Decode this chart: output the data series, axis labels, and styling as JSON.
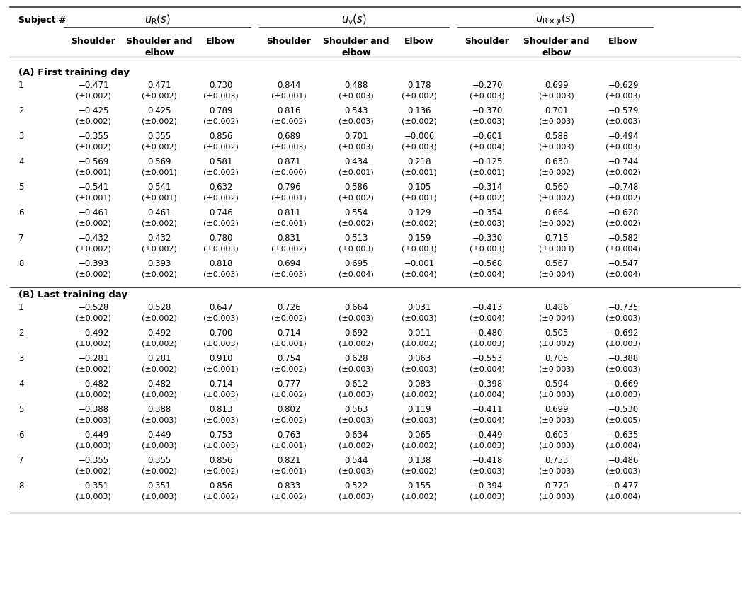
{
  "section_A_label": "(A) First training day",
  "section_B_label": "(B) Last training day",
  "section_A": [
    {
      "subject": "1",
      "vals": [
        "−0.471",
        "0.471",
        "0.730",
        "0.844",
        "0.488",
        "0.178",
        "−0.270",
        "0.699",
        "−0.629"
      ],
      "errs": [
        "(±0.002)",
        "(±0.002)",
        "(±0.003)",
        "(±0.001)",
        "(±0.003)",
        "(±0.002)",
        "(±0.003)",
        "(±0.003)",
        "(±0.003)"
      ]
    },
    {
      "subject": "2",
      "vals": [
        "−0.425",
        "0.425",
        "0.789",
        "0.816",
        "0.543",
        "0.136",
        "−0.370",
        "0.701",
        "−0.579"
      ],
      "errs": [
        "(±0.002)",
        "(±0.002)",
        "(±0.002)",
        "(±0.002)",
        "(±0.003)",
        "(±0.002)",
        "(±0.003)",
        "(±0.003)",
        "(±0.003)"
      ]
    },
    {
      "subject": "3",
      "vals": [
        "−0.355",
        "0.355",
        "0.856",
        "0.689",
        "0.701",
        "−0.006",
        "−0.601",
        "0.588",
        "−0.494"
      ],
      "errs": [
        "(±0.002)",
        "(±0.002)",
        "(±0.002)",
        "(±0.003)",
        "(±0.003)",
        "(±0.003)",
        "(±0.004)",
        "(±0.003)",
        "(±0.003)"
      ]
    },
    {
      "subject": "4",
      "vals": [
        "−0.569",
        "0.569",
        "0.581",
        "0.871",
        "0.434",
        "0.218",
        "−0.125",
        "0.630",
        "−0.744"
      ],
      "errs": [
        "(±0.001)",
        "(±0.001)",
        "(±0.002)",
        "(±0.000)",
        "(±0.001)",
        "(±0.001)",
        "(±0.001)",
        "(±0.002)",
        "(±0.002)"
      ]
    },
    {
      "subject": "5",
      "vals": [
        "−0.541",
        "0.541",
        "0.632",
        "0.796",
        "0.586",
        "0.105",
        "−0.314",
        "0.560",
        "−0.748"
      ],
      "errs": [
        "(±0.001)",
        "(±0.001)",
        "(±0.002)",
        "(±0.001)",
        "(±0.002)",
        "(±0.001)",
        "(±0.002)",
        "(±0.002)",
        "(±0.002)"
      ]
    },
    {
      "subject": "6",
      "vals": [
        "−0.461",
        "0.461",
        "0.746",
        "0.811",
        "0.554",
        "0.129",
        "−0.354",
        "0.664",
        "−0.628"
      ],
      "errs": [
        "(±0.002)",
        "(±0.002)",
        "(±0.002)",
        "(±0.001)",
        "(±0.002)",
        "(±0.002)",
        "(±0.003)",
        "(±0.002)",
        "(±0.002)"
      ]
    },
    {
      "subject": "7",
      "vals": [
        "−0.432",
        "0.432",
        "0.780",
        "0.831",
        "0.513",
        "0.159",
        "−0.330",
        "0.715",
        "−0.582"
      ],
      "errs": [
        "(±0.002)",
        "(±0.002)",
        "(±0.003)",
        "(±0.002)",
        "(±0.003)",
        "(±0.003)",
        "(±0.003)",
        "(±0.003)",
        "(±0.004)"
      ]
    },
    {
      "subject": "8",
      "vals": [
        "−0.393",
        "0.393",
        "0.818",
        "0.694",
        "0.695",
        "−0.001",
        "−0.568",
        "0.567",
        "−0.547"
      ],
      "errs": [
        "(±0.002)",
        "(±0.002)",
        "(±0.003)",
        "(±0.003)",
        "(±0.004)",
        "(±0.004)",
        "(±0.004)",
        "(±0.004)",
        "(±0.004)"
      ]
    }
  ],
  "section_B": [
    {
      "subject": "1",
      "vals": [
        "−0.528",
        "0.528",
        "0.647",
        "0.726",
        "0.664",
        "0.031",
        "−0.413",
        "0.486",
        "−0.735"
      ],
      "errs": [
        "(±0.002)",
        "(±0.002)",
        "(±0.003)",
        "(±0.002)",
        "(±0.003)",
        "(±0.003)",
        "(±0.004)",
        "(±0.004)",
        "(±0.003)"
      ]
    },
    {
      "subject": "2",
      "vals": [
        "−0.492",
        "0.492",
        "0.700",
        "0.714",
        "0.692",
        "0.011",
        "−0.480",
        "0.505",
        "−0.692"
      ],
      "errs": [
        "(±0.002)",
        "(±0.002)",
        "(±0.003)",
        "(±0.001)",
        "(±0.002)",
        "(±0.002)",
        "(±0.003)",
        "(±0.002)",
        "(±0.003)"
      ]
    },
    {
      "subject": "3",
      "vals": [
        "−0.281",
        "0.281",
        "0.910",
        "0.754",
        "0.628",
        "0.063",
        "−0.553",
        "0.705",
        "−0.388"
      ],
      "errs": [
        "(±0.002)",
        "(±0.002)",
        "(±0.001)",
        "(±0.002)",
        "(±0.003)",
        "(±0.003)",
        "(±0.004)",
        "(±0.003)",
        "(±0.003)"
      ]
    },
    {
      "subject": "4",
      "vals": [
        "−0.482",
        "0.482",
        "0.714",
        "0.777",
        "0.612",
        "0.083",
        "−0.398",
        "0.594",
        "−0.669"
      ],
      "errs": [
        "(±0.002)",
        "(±0.002)",
        "(±0.003)",
        "(±0.002)",
        "(±0.003)",
        "(±0.002)",
        "(±0.004)",
        "(±0.003)",
        "(±0.003)"
      ]
    },
    {
      "subject": "5",
      "vals": [
        "−0.388",
        "0.388",
        "0.813",
        "0.802",
        "0.563",
        "0.119",
        "−0.411",
        "0.699",
        "−0.530"
      ],
      "errs": [
        "(±0.003)",
        "(±0.003)",
        "(±0.003)",
        "(±0.002)",
        "(±0.003)",
        "(±0.003)",
        "(±0.004)",
        "(±0.003)",
        "(±0.005)"
      ]
    },
    {
      "subject": "6",
      "vals": [
        "−0.449",
        "0.449",
        "0.753",
        "0.763",
        "0.634",
        "0.065",
        "−0.449",
        "0.603",
        "−0.635"
      ],
      "errs": [
        "(±0.003)",
        "(±0.003)",
        "(±0.003)",
        "(±0.001)",
        "(±0.002)",
        "(±0.002)",
        "(±0.003)",
        "(±0.003)",
        "(±0.004)"
      ]
    },
    {
      "subject": "7",
      "vals": [
        "−0.355",
        "0.355",
        "0.856",
        "0.821",
        "0.544",
        "0.138",
        "−0.418",
        "0.753",
        "−0.486"
      ],
      "errs": [
        "(±0.002)",
        "(±0.002)",
        "(±0.002)",
        "(±0.001)",
        "(±0.003)",
        "(±0.002)",
        "(±0.003)",
        "(±0.003)",
        "(±0.003)"
      ]
    },
    {
      "subject": "8",
      "vals": [
        "−0.351",
        "0.351",
        "0.856",
        "0.833",
        "0.522",
        "0.155",
        "−0.394",
        "0.770",
        "−0.477"
      ],
      "errs": [
        "(±0.003)",
        "(±0.003)",
        "(±0.002)",
        "(±0.002)",
        "(±0.003)",
        "(±0.002)",
        "(±0.003)",
        "(±0.003)",
        "(±0.004)"
      ]
    }
  ],
  "bg_color": "#ffffff",
  "text_color": "#000000"
}
